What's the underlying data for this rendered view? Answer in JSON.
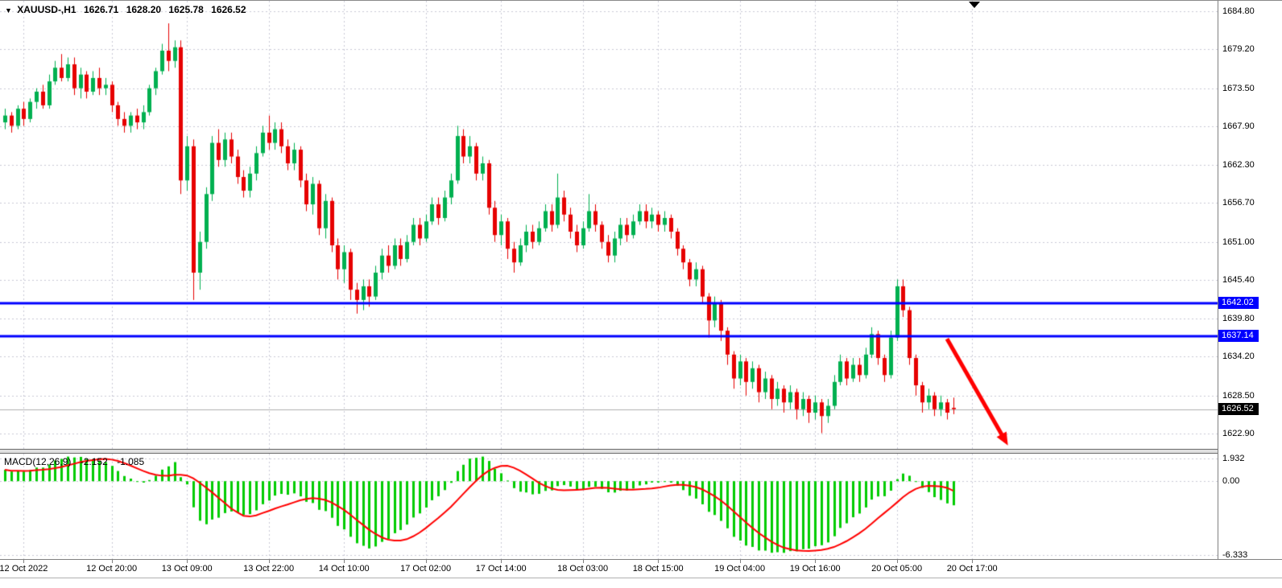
{
  "header": {
    "marker_glyph": "▼",
    "symbol_period": "XAUUSD-,H1",
    "open": "1626.71",
    "high": "1628.20",
    "low": "1625.78",
    "close": "1626.52"
  },
  "colors": {
    "background": "#ffffff",
    "grid": "#c9c9d6",
    "bull": "#00b050",
    "bear": "#e60000",
    "hline": "#0000ff",
    "price_line": "#b0b0b0",
    "tag_black_bg": "#000000",
    "tag_text": "#ffffff",
    "macd_histogram": "#00cc00",
    "macd_signal": "#ff0000",
    "arrow": "#ff0000",
    "border": "#808080",
    "text": "#000000"
  },
  "chart_data": {
    "type": "candlestick",
    "symbol": "XAUUSD-",
    "period": "H1",
    "price_range": {
      "top": 1686.3,
      "bottom": 1620.7
    },
    "price_ticks": [
      {
        "v": 1684.8,
        "label": "1684.80"
      },
      {
        "v": 1679.2,
        "label": "1679.20"
      },
      {
        "v": 1673.5,
        "label": "1673.50"
      },
      {
        "v": 1667.9,
        "label": "1667.90"
      },
      {
        "v": 1662.3,
        "label": "1662.30"
      },
      {
        "v": 1656.7,
        "label": "1656.70"
      },
      {
        "v": 1651.0,
        "label": "1651.00"
      },
      {
        "v": 1645.4,
        "label": "1645.40"
      },
      {
        "v": 1639.8,
        "label": "1639.80"
      },
      {
        "v": 1634.2,
        "label": "1634.20"
      },
      {
        "v": 1628.5,
        "label": "1628.50"
      },
      {
        "v": 1622.9,
        "label": "1622.90"
      }
    ],
    "time_ticks": [
      {
        "label": "12 Oct 2022",
        "bar": 3
      },
      {
        "label": "12 Oct 20:00",
        "bar": 17
      },
      {
        "label": "13 Oct 09:00",
        "bar": 29
      },
      {
        "label": "13 Oct 22:00",
        "bar": 42
      },
      {
        "label": "14 Oct 10:00",
        "bar": 54
      },
      {
        "label": "17 Oct 02:00",
        "bar": 67
      },
      {
        "label": "17 Oct 14:00",
        "bar": 79
      },
      {
        "label": "18 Oct 03:00",
        "bar": 92
      },
      {
        "label": "18 Oct 15:00",
        "bar": 104
      },
      {
        "label": "19 Oct 04:00",
        "bar": 117
      },
      {
        "label": "19 Oct 16:00",
        "bar": 129
      },
      {
        "label": "20 Oct 05:00",
        "bar": 142
      },
      {
        "label": "20 Oct 17:00",
        "bar": 154
      }
    ],
    "bars": [
      [
        1668.5,
        1670.5,
        1667.5,
        1669.5
      ],
      [
        1669.5,
        1670.0,
        1667.0,
        1668.0
      ],
      [
        1668.0,
        1671.0,
        1667.5,
        1670.5
      ],
      [
        1670.5,
        1671.5,
        1668.0,
        1669.0
      ],
      [
        1669.0,
        1672.0,
        1668.5,
        1671.5
      ],
      [
        1671.5,
        1673.5,
        1670.5,
        1673.0
      ],
      [
        1673.0,
        1674.0,
        1670.5,
        1671.0
      ],
      [
        1671.0,
        1675.5,
        1670.5,
        1674.5
      ],
      [
        1674.5,
        1677.5,
        1674.0,
        1676.5
      ],
      [
        1676.5,
        1678.5,
        1674.5,
        1675.0
      ],
      [
        1675.0,
        1678.0,
        1674.5,
        1677.0
      ],
      [
        1677.0,
        1678.0,
        1672.5,
        1673.5
      ],
      [
        1673.5,
        1676.5,
        1672.0,
        1675.5
      ],
      [
        1675.5,
        1676.0,
        1672.0,
        1673.0
      ],
      [
        1673.0,
        1676.0,
        1672.5,
        1675.0
      ],
      [
        1675.0,
        1676.5,
        1672.5,
        1673.5
      ],
      [
        1673.5,
        1675.0,
        1672.5,
        1674.0
      ],
      [
        1674.0,
        1674.5,
        1670.0,
        1671.0
      ],
      [
        1671.0,
        1671.5,
        1668.0,
        1669.0
      ],
      [
        1669.0,
        1670.0,
        1667.0,
        1668.0
      ],
      [
        1668.0,
        1670.0,
        1667.0,
        1669.5
      ],
      [
        1669.5,
        1670.5,
        1667.5,
        1668.5
      ],
      [
        1668.5,
        1671.0,
        1667.5,
        1670.0
      ],
      [
        1670.0,
        1674.0,
        1669.5,
        1673.5
      ],
      [
        1673.5,
        1676.5,
        1672.5,
        1676.0
      ],
      [
        1676.0,
        1680.0,
        1675.5,
        1679.0
      ],
      [
        1679.0,
        1683.0,
        1676.0,
        1677.5
      ],
      [
        1677.5,
        1680.5,
        1676.5,
        1679.5
      ],
      [
        1679.5,
        1680.5,
        1658.0,
        1660.0
      ],
      [
        1660.0,
        1666.5,
        1658.5,
        1665.0
      ],
      [
        1665.0,
        1666.0,
        1642.5,
        1646.5
      ],
      [
        1646.5,
        1652.5,
        1644.0,
        1651.0
      ],
      [
        1651.0,
        1659.0,
        1650.0,
        1658.0
      ],
      [
        1658.0,
        1666.5,
        1657.0,
        1665.5
      ],
      [
        1665.5,
        1667.5,
        1662.0,
        1663.0
      ],
      [
        1663.0,
        1667.0,
        1662.0,
        1666.0
      ],
      [
        1666.0,
        1667.0,
        1662.5,
        1663.5
      ],
      [
        1663.5,
        1664.5,
        1659.5,
        1660.5
      ],
      [
        1660.5,
        1661.5,
        1657.5,
        1658.5
      ],
      [
        1658.5,
        1662.0,
        1657.5,
        1661.0
      ],
      [
        1661.0,
        1665.0,
        1660.0,
        1664.0
      ],
      [
        1664.0,
        1668.0,
        1663.5,
        1667.0
      ],
      [
        1667.0,
        1669.5,
        1664.5,
        1665.5
      ],
      [
        1665.5,
        1668.5,
        1664.5,
        1667.5
      ],
      [
        1667.5,
        1668.5,
        1664.0,
        1665.0
      ],
      [
        1665.0,
        1666.0,
        1661.5,
        1662.5
      ],
      [
        1662.5,
        1665.5,
        1661.5,
        1664.5
      ],
      [
        1664.5,
        1665.0,
        1659.0,
        1660.0
      ],
      [
        1660.0,
        1661.0,
        1655.5,
        1656.5
      ],
      [
        1656.5,
        1660.5,
        1655.0,
        1659.5
      ],
      [
        1659.5,
        1660.0,
        1652.0,
        1653.0
      ],
      [
        1653.0,
        1658.0,
        1651.5,
        1657.0
      ],
      [
        1657.0,
        1657.5,
        1649.5,
        1650.5
      ],
      [
        1650.5,
        1651.5,
        1645.5,
        1647.0
      ],
      [
        1647.0,
        1650.5,
        1645.0,
        1649.5
      ],
      [
        1649.5,
        1650.0,
        1642.5,
        1644.0
      ],
      [
        1644.0,
        1645.0,
        1640.5,
        1642.5
      ],
      [
        1642.5,
        1645.5,
        1641.0,
        1644.5
      ],
      [
        1644.5,
        1645.5,
        1641.5,
        1643.0
      ],
      [
        1643.0,
        1647.5,
        1642.5,
        1646.5
      ],
      [
        1646.5,
        1650.0,
        1645.5,
        1649.0
      ],
      [
        1649.0,
        1650.5,
        1646.5,
        1647.5
      ],
      [
        1647.5,
        1651.5,
        1647.0,
        1650.5
      ],
      [
        1650.5,
        1651.5,
        1647.5,
        1648.5
      ],
      [
        1648.5,
        1652.0,
        1648.0,
        1651.0
      ],
      [
        1651.0,
        1654.5,
        1650.5,
        1653.5
      ],
      [
        1653.5,
        1654.5,
        1650.5,
        1651.5
      ],
      [
        1651.5,
        1655.0,
        1651.0,
        1654.0
      ],
      [
        1654.0,
        1657.5,
        1653.5,
        1656.5
      ],
      [
        1656.5,
        1657.5,
        1653.5,
        1654.5
      ],
      [
        1654.5,
        1658.5,
        1654.0,
        1657.5
      ],
      [
        1657.5,
        1661.0,
        1656.5,
        1660.0
      ],
      [
        1660.0,
        1668.0,
        1659.5,
        1666.5
      ],
      [
        1666.5,
        1667.5,
        1662.5,
        1663.5
      ],
      [
        1663.5,
        1666.5,
        1662.5,
        1665.0
      ],
      [
        1665.0,
        1665.5,
        1660.0,
        1661.0
      ],
      [
        1661.0,
        1663.5,
        1660.0,
        1662.5
      ],
      [
        1662.5,
        1663.0,
        1655.0,
        1656.0
      ],
      [
        1656.0,
        1657.0,
        1651.0,
        1652.0
      ],
      [
        1652.0,
        1655.0,
        1650.5,
        1654.0
      ],
      [
        1654.0,
        1654.5,
        1648.5,
        1650.0
      ],
      [
        1650.0,
        1651.0,
        1646.5,
        1648.0
      ],
      [
        1648.0,
        1651.5,
        1647.5,
        1650.5
      ],
      [
        1650.5,
        1653.5,
        1649.5,
        1652.5
      ],
      [
        1652.5,
        1653.5,
        1650.0,
        1651.0
      ],
      [
        1651.0,
        1654.0,
        1650.5,
        1653.0
      ],
      [
        1653.0,
        1656.5,
        1652.5,
        1655.5
      ],
      [
        1655.5,
        1656.5,
        1652.5,
        1653.5
      ],
      [
        1653.5,
        1661.0,
        1653.0,
        1657.5
      ],
      [
        1657.5,
        1658.5,
        1654.0,
        1655.0
      ],
      [
        1655.0,
        1656.0,
        1651.5,
        1652.5
      ],
      [
        1652.5,
        1653.5,
        1649.5,
        1650.5
      ],
      [
        1650.5,
        1654.0,
        1650.0,
        1653.0
      ],
      [
        1653.0,
        1658.0,
        1652.5,
        1655.5
      ],
      [
        1655.5,
        1656.5,
        1652.5,
        1653.5
      ],
      [
        1653.5,
        1654.0,
        1650.0,
        1651.0
      ],
      [
        1651.0,
        1652.0,
        1648.0,
        1649.0
      ],
      [
        1649.0,
        1652.5,
        1648.0,
        1651.5
      ],
      [
        1651.5,
        1654.5,
        1650.5,
        1653.5
      ],
      [
        1653.5,
        1654.5,
        1651.0,
        1652.0
      ],
      [
        1652.0,
        1655.0,
        1651.5,
        1654.0
      ],
      [
        1654.0,
        1656.5,
        1653.5,
        1655.5
      ],
      [
        1655.5,
        1656.5,
        1653.0,
        1654.0
      ],
      [
        1654.0,
        1656.0,
        1653.0,
        1655.0
      ],
      [
        1655.0,
        1655.5,
        1652.5,
        1653.5
      ],
      [
        1653.5,
        1655.5,
        1652.5,
        1654.5
      ],
      [
        1654.5,
        1655.0,
        1651.5,
        1652.5
      ],
      [
        1652.5,
        1653.0,
        1649.0,
        1650.0
      ],
      [
        1650.0,
        1650.5,
        1647.0,
        1648.0
      ],
      [
        1648.0,
        1648.5,
        1644.5,
        1645.5
      ],
      [
        1645.5,
        1648.0,
        1644.5,
        1647.0
      ],
      [
        1647.0,
        1647.5,
        1642.0,
        1643.0
      ],
      [
        1643.0,
        1643.5,
        1637.0,
        1639.5
      ],
      [
        1639.5,
        1643.0,
        1638.5,
        1642.0
      ],
      [
        1642.0,
        1642.5,
        1636.5,
        1638.0
      ],
      [
        1638.0,
        1638.5,
        1633.0,
        1634.5
      ],
      [
        1634.5,
        1635.0,
        1629.5,
        1631.0
      ],
      [
        1631.0,
        1634.5,
        1630.0,
        1633.5
      ],
      [
        1633.5,
        1634.0,
        1628.5,
        1630.5
      ],
      [
        1630.5,
        1633.5,
        1629.5,
        1632.5
      ],
      [
        1632.5,
        1633.0,
        1627.5,
        1629.0
      ],
      [
        1629.0,
        1632.0,
        1628.0,
        1631.0
      ],
      [
        1631.0,
        1631.5,
        1626.5,
        1628.0
      ],
      [
        1628.0,
        1630.5,
        1627.0,
        1629.5
      ],
      [
        1629.5,
        1630.0,
        1626.0,
        1627.5
      ],
      [
        1627.5,
        1630.0,
        1626.5,
        1629.0
      ],
      [
        1629.0,
        1629.5,
        1625.0,
        1626.5
      ],
      [
        1626.5,
        1629.0,
        1625.5,
        1628.0
      ],
      [
        1628.0,
        1628.5,
        1624.5,
        1626.0
      ],
      [
        1626.0,
        1628.5,
        1625.0,
        1627.5
      ],
      [
        1627.5,
        1628.0,
        1623.0,
        1625.5
      ],
      [
        1625.5,
        1628.0,
        1624.5,
        1627.0
      ],
      [
        1627.0,
        1631.5,
        1626.5,
        1630.5
      ],
      [
        1630.5,
        1634.5,
        1630.0,
        1633.5
      ],
      [
        1633.5,
        1634.0,
        1630.0,
        1631.0
      ],
      [
        1631.0,
        1634.0,
        1630.5,
        1633.0
      ],
      [
        1633.0,
        1634.0,
        1630.5,
        1631.5
      ],
      [
        1631.5,
        1635.5,
        1631.0,
        1634.5
      ],
      [
        1634.5,
        1638.5,
        1634.0,
        1637.5
      ],
      [
        1637.5,
        1638.0,
        1633.0,
        1634.0
      ],
      [
        1634.0,
        1634.5,
        1630.5,
        1631.5
      ],
      [
        1631.5,
        1638.0,
        1631.0,
        1637.0
      ],
      [
        1637.0,
        1645.5,
        1636.5,
        1644.5
      ],
      [
        1644.5,
        1645.5,
        1640.0,
        1641.0
      ],
      [
        1641.0,
        1641.5,
        1633.0,
        1634.0
      ],
      [
        1634.0,
        1634.5,
        1628.5,
        1630.0
      ],
      [
        1630.0,
        1630.5,
        1626.0,
        1627.5
      ],
      [
        1627.5,
        1629.5,
        1626.5,
        1628.5
      ],
      [
        1628.5,
        1629.0,
        1625.5,
        1626.5
      ],
      [
        1626.5,
        1628.5,
        1625.5,
        1627.5
      ],
      [
        1627.5,
        1628.0,
        1625.0,
        1626.0
      ],
      [
        1626.71,
        1628.2,
        1625.78,
        1626.52
      ]
    ],
    "horizontal_lines": [
      {
        "price": 1642.02,
        "label": "1642.02"
      },
      {
        "price": 1637.14,
        "label": "1637.14"
      }
    ],
    "current_price": {
      "value": 1626.52,
      "label": "1626.52"
    },
    "trend_arrow": {
      "from": {
        "bar": 150,
        "price": 1636.8
      },
      "to": {
        "bar": 159.7,
        "price": 1621.2
      }
    },
    "macd": {
      "label": "MACD(12,26,9)",
      "fast": 12,
      "slow": 26,
      "signal": 9,
      "value_main": "-2.152",
      "value_signal": "-1.085",
      "ticks": [
        {
          "v": 1.932,
          "label": "1.932"
        },
        {
          "v": 0,
          "label": "0.00"
        },
        {
          "v": -6.333,
          "label": "-6.333"
        }
      ],
      "range": {
        "top": 2.35,
        "bottom": -6.65
      }
    }
  }
}
